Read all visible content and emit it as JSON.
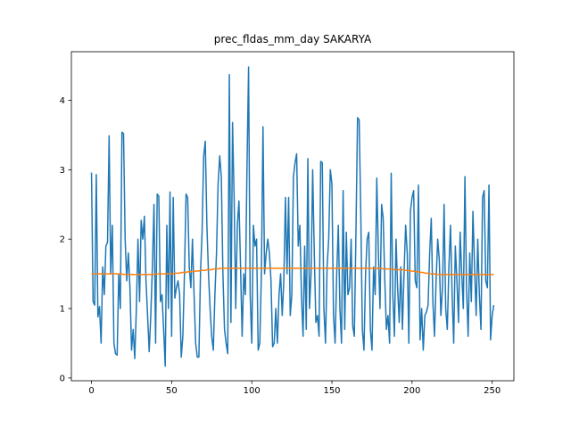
{
  "chart_data": {
    "type": "line",
    "title": "prec_fldas_mm_day SAKARYA",
    "x": [
      0,
      1,
      2,
      3,
      4,
      5,
      6,
      7,
      8,
      9,
      10,
      11,
      12,
      13,
      14,
      15,
      16,
      17,
      18,
      19,
      20,
      21,
      22,
      23,
      24,
      25,
      26,
      27,
      28,
      29,
      30,
      31,
      32,
      33,
      34,
      35,
      36,
      37,
      38,
      39,
      40,
      41,
      42,
      43,
      44,
      45,
      46,
      47,
      48,
      49,
      50,
      51,
      52,
      53,
      54,
      55,
      56,
      57,
      58,
      59,
      60,
      61,
      62,
      63,
      64,
      65,
      66,
      67,
      68,
      69,
      70,
      71,
      72,
      73,
      74,
      75,
      76,
      77,
      78,
      79,
      80,
      81,
      82,
      83,
      84,
      85,
      86,
      87,
      88,
      89,
      90,
      91,
      92,
      93,
      94,
      95,
      96,
      97,
      98,
      99,
      100,
      101,
      102,
      103,
      104,
      105,
      106,
      107,
      108,
      109,
      110,
      111,
      112,
      113,
      114,
      115,
      116,
      117,
      118,
      119,
      120,
      121,
      122,
      123,
      124,
      125,
      126,
      127,
      128,
      129,
      130,
      131,
      132,
      133,
      134,
      135,
      136,
      137,
      138,
      139,
      140,
      141,
      142,
      143,
      144,
      145,
      146,
      147,
      148,
      149,
      150,
      151,
      152,
      153,
      154,
      155,
      156,
      157,
      158,
      159,
      160,
      161,
      162,
      163,
      164,
      165,
      166,
      167,
      168,
      169,
      170,
      171,
      172,
      173,
      174,
      175,
      176,
      177,
      178,
      179,
      180,
      181,
      182,
      183,
      184,
      185,
      186,
      187,
      188,
      189,
      190,
      191,
      192,
      193,
      194,
      195,
      196,
      197,
      198,
      199,
      200,
      201,
      202,
      203,
      204,
      205,
      206,
      207,
      208,
      209,
      210,
      211,
      212,
      213,
      214,
      215,
      216,
      217,
      218,
      219,
      220,
      221,
      222,
      223,
      224,
      225,
      226,
      227,
      228,
      229,
      230,
      231,
      232,
      233,
      234,
      235,
      236,
      237,
      238,
      239,
      240,
      241,
      242,
      243,
      244,
      245,
      246,
      247,
      248,
      249,
      250,
      251
    ],
    "series": [
      {
        "color": "#1f77b4",
        "values": [
          2.96,
          1.1,
          1.05,
          2.93,
          0.88,
          1.03,
          0.5,
          1.6,
          1.2,
          1.9,
          1.95,
          3.49,
          1.5,
          2.2,
          0.5,
          0.35,
          0.33,
          1.5,
          1.0,
          3.54,
          3.52,
          2.0,
          1.4,
          1.8,
          1.3,
          0.4,
          0.7,
          0.28,
          1.0,
          2.0,
          1.1,
          2.27,
          2.0,
          2.33,
          1.4,
          0.9,
          0.38,
          0.9,
          1.6,
          2.5,
          0.5,
          2.65,
          2.62,
          1.1,
          1.2,
          0.7,
          0.17,
          2.2,
          1.0,
          2.68,
          0.6,
          2.6,
          1.15,
          1.3,
          1.4,
          1.2,
          0.3,
          0.6,
          1.5,
          2.65,
          2.6,
          1.6,
          1.3,
          2.0,
          1.2,
          0.5,
          0.3,
          0.3,
          1.5,
          2.1,
          3.2,
          3.41,
          2.2,
          1.5,
          1.0,
          0.6,
          0.4,
          1.2,
          1.8,
          2.8,
          3.2,
          2.9,
          1.5,
          0.7,
          0.5,
          0.35,
          4.37,
          0.8,
          3.68,
          2.6,
          1.0,
          2.2,
          2.55,
          1.6,
          0.6,
          1.5,
          1.2,
          3.0,
          4.48,
          1.2,
          0.5,
          2.2,
          1.9,
          2.0,
          0.4,
          0.5,
          1.5,
          3.62,
          1.5,
          1.8,
          2.0,
          1.8,
          1.4,
          0.45,
          0.5,
          1.0,
          0.5,
          1.2,
          1.5,
          0.9,
          1.4,
          2.6,
          1.5,
          2.6,
          0.9,
          1.2,
          2.9,
          3.1,
          3.23,
          1.9,
          2.2,
          1.2,
          0.6,
          1.9,
          0.7,
          3.16,
          1.0,
          1.5,
          3.0,
          1.8,
          0.8,
          0.9,
          0.6,
          3.12,
          3.1,
          1.0,
          0.5,
          1.6,
          2.0,
          3.0,
          2.8,
          0.9,
          0.5,
          1.5,
          2.2,
          1.0,
          0.5,
          2.7,
          0.7,
          2.1,
          1.2,
          1.3,
          2.0,
          0.75,
          0.6,
          2.1,
          3.75,
          3.72,
          2.4,
          0.7,
          0.4,
          1.5,
          2.0,
          2.1,
          0.7,
          0.4,
          1.6,
          1.2,
          2.88,
          1.8,
          1.0,
          2.5,
          2.3,
          1.4,
          0.7,
          0.9,
          0.5,
          2.95,
          1.2,
          0.6,
          2.0,
          1.3,
          0.8,
          1.6,
          0.7,
          1.5,
          2.2,
          1.8,
          0.5,
          2.4,
          2.6,
          2.7,
          1.4,
          1.3,
          2.78,
          0.55,
          1.0,
          0.4,
          0.9,
          0.95,
          1.05,
          1.8,
          2.3,
          1.1,
          0.6,
          1.4,
          2.0,
          1.7,
          0.9,
          1.3,
          2.5,
          1.0,
          0.7,
          1.6,
          2.2,
          1.2,
          0.5,
          1.9,
          1.4,
          0.8,
          2.1,
          1.5,
          1.0,
          2.9,
          1.3,
          0.6,
          1.8,
          1.1,
          2.4,
          1.6,
          0.9,
          2.0,
          1.2,
          0.7,
          2.6,
          2.7,
          1.4,
          1.3,
          2.78,
          0.55,
          0.9,
          1.05
        ]
      },
      {
        "color": "#ff7f0e",
        "values": [
          1.5,
          1.5,
          1.5,
          1.5,
          1.5,
          1.5,
          1.5,
          1.5,
          1.5,
          1.5,
          1.5,
          1.5,
          1.5,
          1.5,
          1.5,
          1.5,
          1.5,
          1.5,
          1.5,
          1.5,
          1.49,
          1.49,
          1.49,
          1.49,
          1.49,
          1.49,
          1.49,
          1.49,
          1.49,
          1.49,
          1.49,
          1.49,
          1.49,
          1.49,
          1.49,
          1.49,
          1.49,
          1.49,
          1.49,
          1.49,
          1.5,
          1.5,
          1.5,
          1.5,
          1.5,
          1.5,
          1.5,
          1.5,
          1.5,
          1.5,
          1.5,
          1.5,
          1.51,
          1.51,
          1.51,
          1.51,
          1.52,
          1.52,
          1.52,
          1.52,
          1.53,
          1.53,
          1.53,
          1.53,
          1.54,
          1.54,
          1.54,
          1.54,
          1.55,
          1.55,
          1.55,
          1.55,
          1.56,
          1.56,
          1.56,
          1.56,
          1.57,
          1.57,
          1.57,
          1.57,
          1.58,
          1.58,
          1.58,
          1.58,
          1.58,
          1.58,
          1.58,
          1.58,
          1.58,
          1.58,
          1.58,
          1.58,
          1.58,
          1.58,
          1.58,
          1.58,
          1.58,
          1.58,
          1.58,
          1.58,
          1.58,
          1.58,
          1.58,
          1.58,
          1.58,
          1.58,
          1.58,
          1.58,
          1.58,
          1.58,
          1.58,
          1.58,
          1.58,
          1.58,
          1.58,
          1.58,
          1.58,
          1.58,
          1.58,
          1.58,
          1.58,
          1.58,
          1.58,
          1.58,
          1.58,
          1.58,
          1.58,
          1.58,
          1.58,
          1.58,
          1.58,
          1.58,
          1.58,
          1.58,
          1.58,
          1.58,
          1.58,
          1.58,
          1.58,
          1.58,
          1.58,
          1.58,
          1.58,
          1.58,
          1.58,
          1.58,
          1.58,
          1.58,
          1.58,
          1.58,
          1.58,
          1.58,
          1.58,
          1.58,
          1.58,
          1.58,
          1.58,
          1.58,
          1.58,
          1.58,
          1.58,
          1.58,
          1.58,
          1.58,
          1.58,
          1.58,
          1.58,
          1.58,
          1.58,
          1.58,
          1.58,
          1.58,
          1.58,
          1.58,
          1.58,
          1.58,
          1.58,
          1.58,
          1.58,
          1.58,
          1.58,
          1.58,
          1.57,
          1.57,
          1.57,
          1.57,
          1.57,
          1.57,
          1.57,
          1.56,
          1.56,
          1.56,
          1.56,
          1.56,
          1.56,
          1.55,
          1.55,
          1.55,
          1.55,
          1.54,
          1.54,
          1.54,
          1.53,
          1.53,
          1.53,
          1.52,
          1.52,
          1.52,
          1.51,
          1.51,
          1.51,
          1.5,
          1.5,
          1.5,
          1.5,
          1.49,
          1.49,
          1.49,
          1.49,
          1.49,
          1.49,
          1.49,
          1.49,
          1.49,
          1.49,
          1.49,
          1.49,
          1.49,
          1.49,
          1.49,
          1.49,
          1.49,
          1.49,
          1.49,
          1.49,
          1.49,
          1.49,
          1.49,
          1.49,
          1.49,
          1.49,
          1.49,
          1.49,
          1.49,
          1.49,
          1.49,
          1.49,
          1.49,
          1.49,
          1.49,
          1.49,
          1.49
        ]
      }
    ],
    "xlim": [
      -12.55,
      263.55
    ],
    "xticks": [
      0,
      50,
      100,
      150,
      200,
      250
    ],
    "ylim": [
      -0.04,
      4.7
    ],
    "yticks": [
      0,
      1,
      2,
      3,
      4
    ]
  }
}
